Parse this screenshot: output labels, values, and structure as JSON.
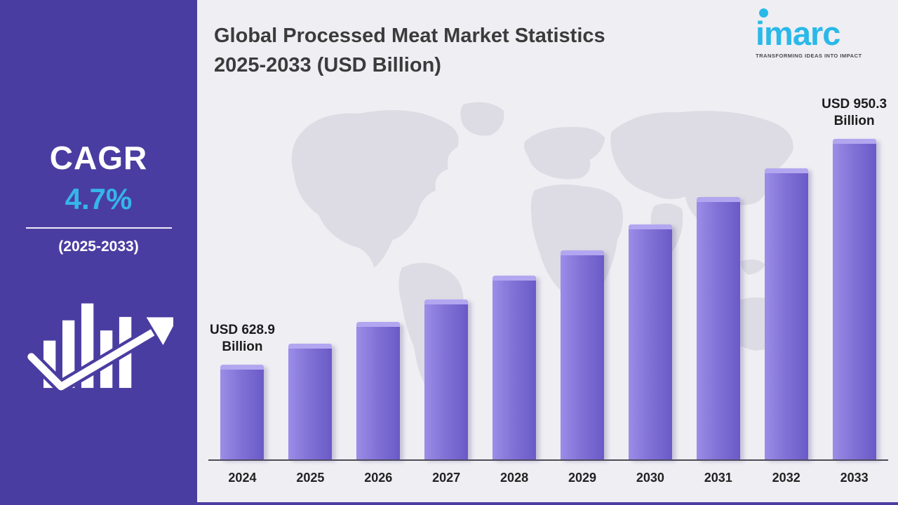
{
  "sidebar": {
    "cagr_label": "CAGR",
    "cagr_value": "4.7%",
    "period": "(2025-2033)"
  },
  "header": {
    "title_line1": "Global Processed Meat Market Statistics",
    "title_line2": "2025-2033 (USD Billion)"
  },
  "logo": {
    "name": "imarc",
    "tagline": "TRANSFORMING IDEAS INTO IMPACT"
  },
  "chart_data": {
    "type": "bar",
    "title": "Global Processed Meat Market Statistics 2025-2033 (USD Billion)",
    "categories": [
      "2024",
      "2025",
      "2026",
      "2027",
      "2028",
      "2029",
      "2030",
      "2031",
      "2032",
      "2033"
    ],
    "values": [
      628.9,
      658.5,
      689.4,
      721.8,
      755.8,
      791.3,
      828.5,
      867.4,
      908.2,
      950.3
    ],
    "unit": "USD Billion",
    "cagr": "4.7%",
    "bar_labels": [
      {
        "index": 0,
        "text": "USD 628.9 Billion"
      },
      {
        "index": 9,
        "text": "USD 950.3 Billion"
      }
    ],
    "ylim": [
      600,
      960
    ],
    "grid": false,
    "legend": false,
    "bar_color": "#7f6fd6"
  },
  "colors": {
    "sidebar_purple": "#4a3da1",
    "accent_cyan": "#2cb4e8",
    "bar_purple": "#7f6fd6",
    "background": "#efeef3"
  }
}
